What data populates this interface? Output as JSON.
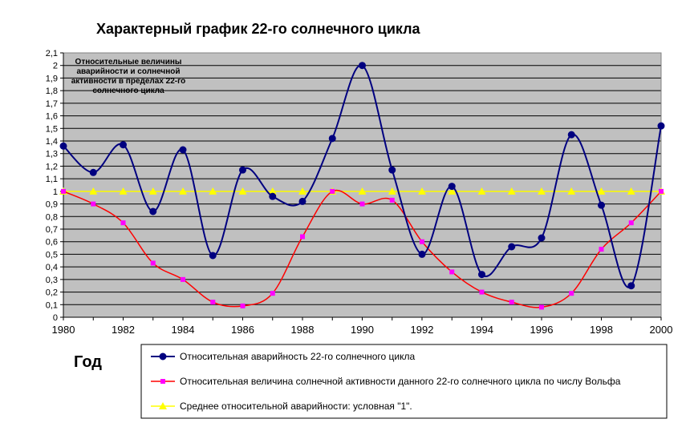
{
  "chart_data": {
    "type": "line",
    "title": "Характерный график 22-го солнечного цикла",
    "xlabel": "Год",
    "ylabel": "",
    "annotation_lines": [
      "Относительные величины",
      "аварийности и солнечной",
      "активности в пределах 22-го",
      "солнечного цикла"
    ],
    "x": [
      1980,
      1981,
      1982,
      1983,
      1984,
      1985,
      1986,
      1987,
      1988,
      1989,
      1990,
      1991,
      1992,
      1993,
      1994,
      1995,
      1996,
      1997,
      1998,
      1999,
      2000
    ],
    "xlim": [
      1980,
      2000
    ],
    "ylim": [
      0,
      2.1
    ],
    "x_ticks": [
      "1980",
      "1982",
      "1984",
      "1986",
      "1988",
      "1990",
      "1992",
      "1994",
      "1996",
      "1998",
      "2000"
    ],
    "y_ticks": [
      "0",
      "0,1",
      "0,2",
      "0,3",
      "0,4",
      "0,5",
      "0,6",
      "0,7",
      "0,8",
      "0,9",
      "1",
      "1,1",
      "1,2",
      "1,3",
      "1,4",
      "1,5",
      "1,6",
      "1,7",
      "1,8",
      "1,9",
      "2",
      "2,1"
    ],
    "grid": true,
    "legend_position": "bottom",
    "series": [
      {
        "name": "Относительная аварийность 22-го солнечного цикла",
        "color": "#000080",
        "marker": "circle",
        "values": [
          1.36,
          1.15,
          1.37,
          0.84,
          1.33,
          0.49,
          1.17,
          0.96,
          0.92,
          1.42,
          2.0,
          1.17,
          0.5,
          1.04,
          0.34,
          0.56,
          0.63,
          1.45,
          0.89,
          0.25,
          1.52
        ]
      },
      {
        "name": "Относительная величина солнечной активности данного 22-го солнечного цикла по числу Вольфа",
        "color": "#ff0000",
        "marker_color": "#ff00ff",
        "marker": "square",
        "values": [
          1.0,
          0.9,
          0.75,
          0.43,
          0.3,
          0.12,
          0.09,
          0.19,
          0.64,
          1.0,
          0.9,
          0.93,
          0.6,
          0.36,
          0.2,
          0.12,
          0.08,
          0.19,
          0.54,
          0.75,
          1.0
        ]
      },
      {
        "name": "Среднее относительной аварийности: условная \"1\".",
        "color": "#ffff00",
        "marker": "triangle",
        "values": [
          1,
          1,
          1,
          1,
          1,
          1,
          1,
          1,
          1,
          1,
          1,
          1,
          1,
          1,
          1,
          1,
          1,
          1,
          1,
          1,
          1
        ]
      }
    ]
  }
}
